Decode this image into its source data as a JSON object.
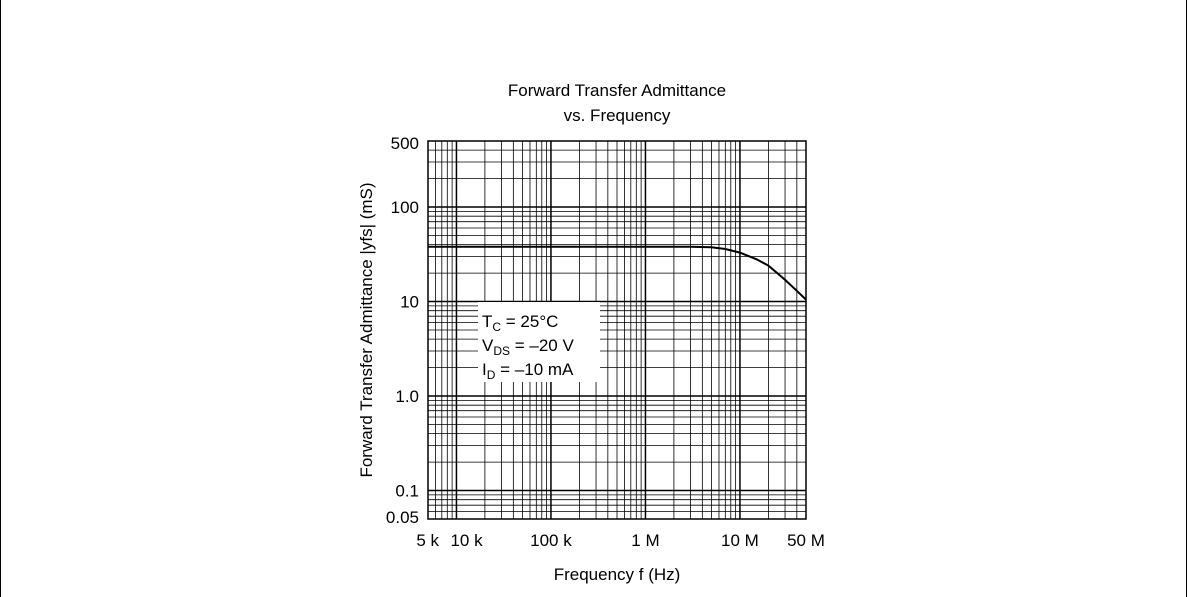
{
  "chart_data": {
    "type": "line",
    "title_lines": [
      "Forward Transfer Admittance",
      "vs. Frequency"
    ],
    "xlabel": "Frequency  f  (Hz)",
    "ylabel_left": "Forward Transfer Admittance",
    "ylabel_symbol": "yfs",
    "ylabel_unit": "(mS)",
    "x_scale": "log",
    "y_scale": "log",
    "xlim": [
      5000,
      50000000
    ],
    "ylim": [
      0.05,
      500
    ],
    "grid": true,
    "x_ticks": [
      {
        "value": 5000,
        "label": "5 k"
      },
      {
        "value": 10000,
        "label": "10 k"
      },
      {
        "value": 100000,
        "label": "100 k"
      },
      {
        "value": 1000000,
        "label": "1 M"
      },
      {
        "value": 10000000,
        "label": "10 M"
      },
      {
        "value": 50000000,
        "label": "50 M"
      }
    ],
    "y_ticks": [
      {
        "value": 500,
        "label": "500"
      },
      {
        "value": 100,
        "label": "100"
      },
      {
        "value": 10,
        "label": "10"
      },
      {
        "value": 1,
        "label": "1.0"
      },
      {
        "value": 0.1,
        "label": "0.1"
      },
      {
        "value": 0.05,
        "label": "0.05"
      }
    ],
    "series": [
      {
        "x": [
          5000,
          10000,
          100000,
          1000000,
          3000000,
          5000000,
          7000000,
          10000000,
          15000000,
          20000000,
          30000000,
          40000000,
          50000000
        ],
        "y": [
          38,
          38,
          38,
          38,
          38,
          37.5,
          36,
          33,
          28,
          24,
          17,
          13,
          10.5
        ]
      }
    ],
    "conditions": {
      "tc": {
        "main": "T",
        "sub": "C",
        "rest": " = 25°C"
      },
      "vds": {
        "main": "V",
        "sub": "DS",
        "rest": " = –20 V"
      },
      "id": {
        "main": "I",
        "sub": "D",
        "rest": " = –10 mA"
      }
    }
  }
}
